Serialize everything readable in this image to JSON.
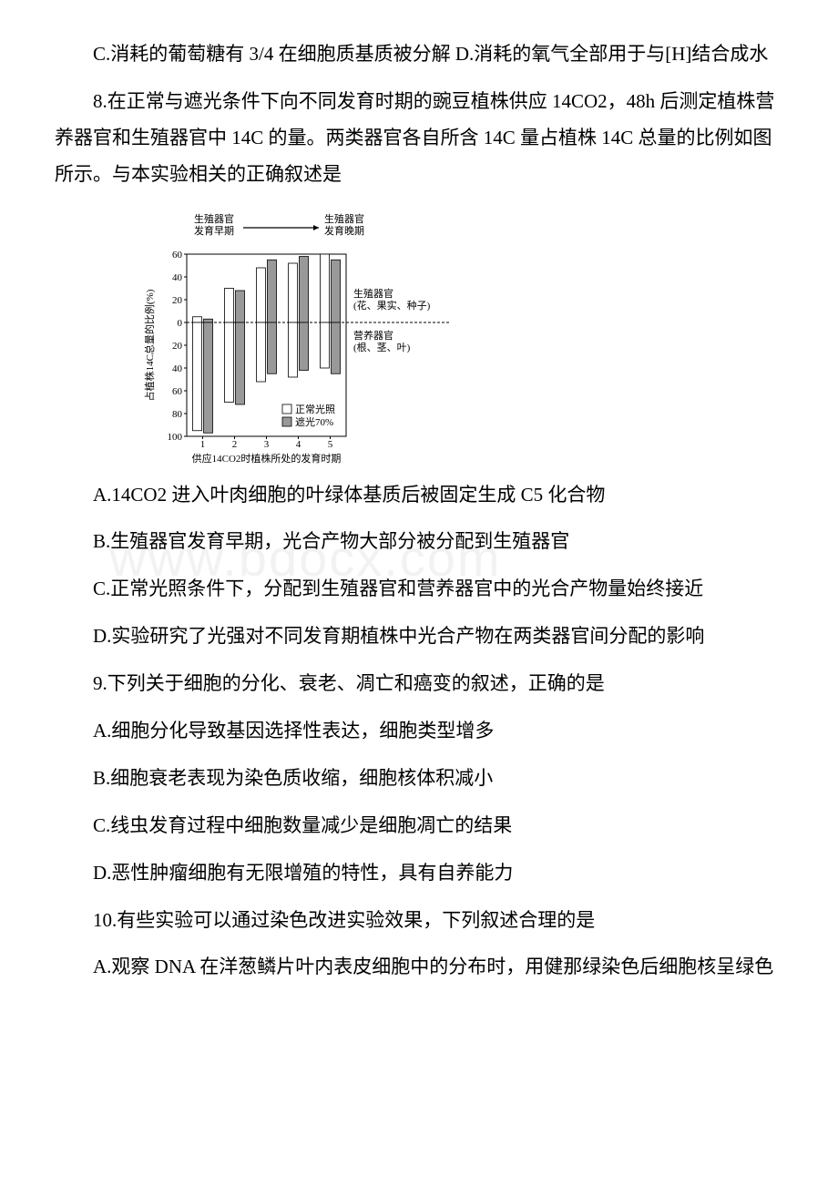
{
  "watermark": "www.bdocx.com",
  "q7": {
    "optCD": "C.消耗的葡萄糖有 3/4 在细胞质基质被分解 D.消耗的氧气全部用于与[H]结合成水"
  },
  "q8": {
    "stem": "8.在正常与遮光条件下向不同发育时期的豌豆植株供应 14CO2，48h 后测定植株营养器官和生殖器官中 14C 的量。两类器官各自所含 14C 量占植株 14C 总量的比例如图所示。与本实验相关的正确叙述是",
    "optA": "A.14CO2 进入叶肉细胞的叶绿体基质后被固定生成 C5 化合物",
    "optB": "B.生殖器官发育早期，光合产物大部分被分配到生殖器官",
    "optC": "C.正常光照条件下，分配到生殖器官和营养器官中的光合产物量始终接近",
    "optD": "D.实验研究了光强对不同发育期植株中光合产物在两类器官间分配的影响"
  },
  "q9": {
    "stem": "9.下列关于细胞的分化、衰老、凋亡和癌变的叙述，正确的是",
    "optA": "A.细胞分化导致基因选择性表达，细胞类型增多",
    "optB": "B.细胞衰老表现为染色质收缩，细胞核体积减小",
    "optC": "C.线虫发育过程中细胞数量减少是细胞凋亡的结果",
    "optD": "D.恶性肿瘤细胞有无限增殖的特性，具有自养能力"
  },
  "q10": {
    "stem": "10.有些实验可以通过染色改进实验效果，下列叙述合理的是",
    "optA": "A.观察 DNA 在洋葱鳞片叶内表皮细胞中的分布时，用健那绿染色后细胞核呈绿色"
  },
  "chart": {
    "topLabels": {
      "left": "生殖器官\n发育早期",
      "right": "生殖器官\n发育晚期"
    },
    "yLabel": "占植株14C总量的比例(%)",
    "xLabel": "供应14CO2时植株所处的发育时期",
    "rightLabels": {
      "upper": "生殖器官\n(花、果实、种子)",
      "lower": "营养器官\n(根、茎、叶)"
    },
    "legend": {
      "white": "正常光照",
      "gray": "遮光70%"
    },
    "xTicks": [
      "1",
      "2",
      "3",
      "4",
      "5"
    ],
    "yTicksUp": [
      0,
      20,
      40,
      60
    ],
    "yTicksDown": [
      20,
      40,
      60,
      80,
      100
    ],
    "colors": {
      "barWhite": "#ffffff",
      "barGray": "#999999",
      "axis": "#000000",
      "text": "#000000"
    },
    "bars": {
      "reproUp": {
        "white": [
          5,
          30,
          48,
          52,
          60
        ],
        "gray": [
          3,
          28,
          55,
          58,
          55
        ]
      },
      "vegDown": {
        "white": [
          95,
          70,
          52,
          48,
          40
        ],
        "gray": [
          97,
          72,
          45,
          42,
          45
        ]
      }
    },
    "fontSize": 11
  }
}
